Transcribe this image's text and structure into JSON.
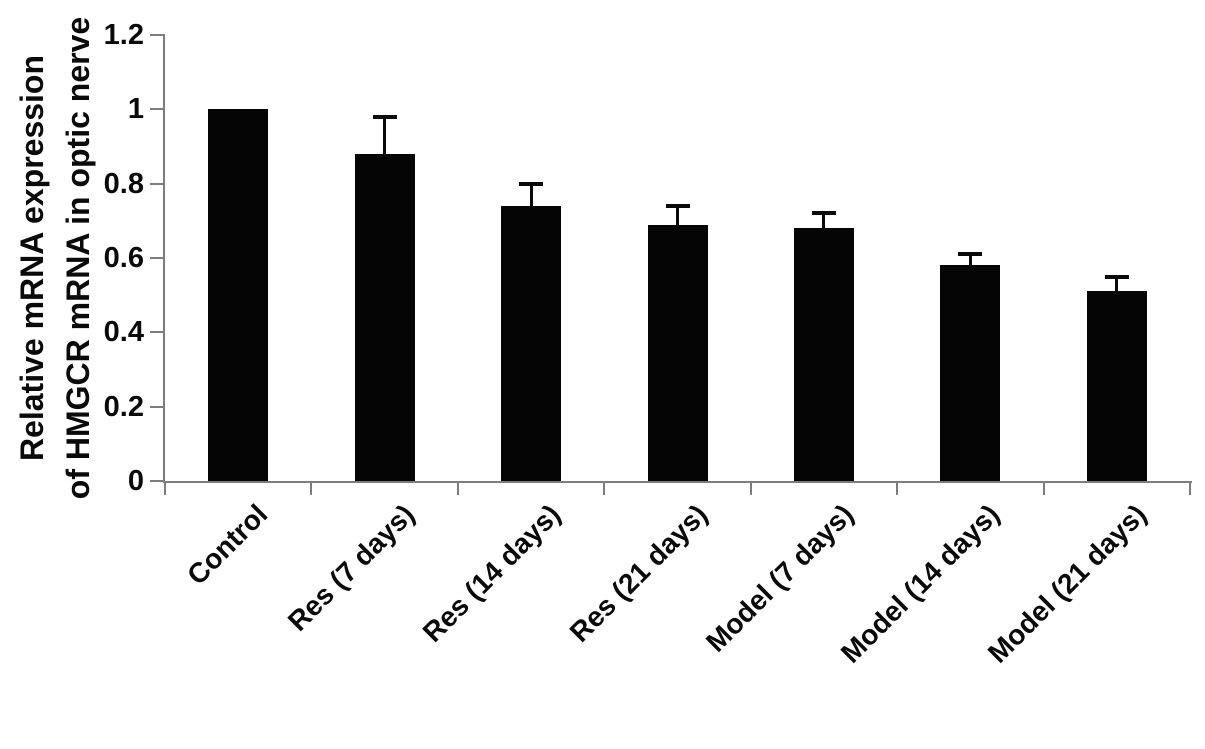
{
  "figure": {
    "background_color": "#ffffff",
    "bar_color": "#050505",
    "axis_color": "#7d7d7d",
    "text_color": "#0a0a0a"
  },
  "chart_data": {
    "type": "bar",
    "title": "",
    "ylabel_lines": [
      "Relative mRNA expression",
      "of HMGCR mRNA in optic nerve"
    ],
    "xlabel": "",
    "categories": [
      "Control",
      "Res (7 days)",
      "Res (14 days)",
      "Res (21 days)",
      "Model (7 days)",
      "Model (14 days)",
      "Model (21 days)"
    ],
    "values": [
      1.0,
      0.88,
      0.74,
      0.69,
      0.68,
      0.58,
      0.51
    ],
    "errors": [
      0,
      0.1,
      0.06,
      0.05,
      0.04,
      0.03,
      0.04
    ],
    "error_direction": "upper-only",
    "ylim": [
      0,
      1.2
    ],
    "ytick_values": [
      0,
      0.2,
      0.4,
      0.6,
      0.8,
      1,
      1.2
    ],
    "ytick_labels": [
      "0",
      "0.2",
      "0.4",
      "0.6",
      "0.8",
      "1",
      "1.2"
    ],
    "grid": false,
    "legend": null,
    "xtick_label_rotation_deg": 45
  }
}
